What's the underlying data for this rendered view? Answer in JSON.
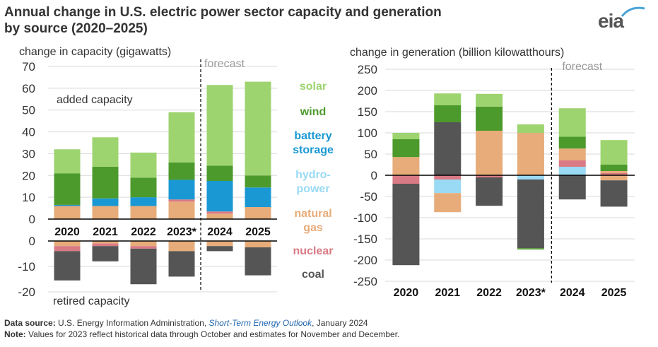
{
  "title": {
    "line1": "Annual change in U.S. electric power sector capacity and generation",
    "line2": "by source (2020–2025)"
  },
  "logo": {
    "text": "eia",
    "icon": "eia-logo-icon"
  },
  "colors": {
    "solar": "#9dd46f",
    "wind": "#4d9a2c",
    "battery storage": "#1a98d4",
    "hydropower": "#9adaf5",
    "natural gas": "#e7ac7a",
    "nuclear": "#d97a85",
    "coal": "#555555"
  },
  "legend": [
    {
      "label": "solar",
      "key": "solar"
    },
    {
      "label": "wind",
      "key": "wind"
    },
    {
      "label": "battery\nstorage",
      "key": "battery storage"
    },
    {
      "label": "hydro-\npower",
      "key": "hydropower"
    },
    {
      "label": "natural\ngas",
      "key": "natural gas"
    },
    {
      "label": "nuclear",
      "key": "nuclear"
    },
    {
      "label": "coal",
      "key": "coal"
    }
  ],
  "footer": {
    "source_label": "Data source:",
    "source_text_pre": " U.S. Energy Information Administration, ",
    "source_link": "Short-Term Energy Outlook",
    "source_text_post": ", January 2024",
    "note_label": "Note:",
    "note_text": " Values for 2023 reflect historical data through October and estimates for November and December."
  },
  "chart_data": [
    {
      "type": "bar",
      "stacked": true,
      "title": "change in capacity (gigawatts)",
      "categories": [
        "2020",
        "2021",
        "2022",
        "2023*",
        "2024",
        "2025"
      ],
      "forecast_label": "forecast",
      "forecast_start_index": 4,
      "added_label": "added capacity",
      "retired_label": "retired capacity",
      "added": {
        "ylim": [
          0,
          70
        ],
        "ticks": [
          0,
          10,
          20,
          30,
          40,
          50,
          60,
          70
        ],
        "series": [
          {
            "name": "natural gas",
            "values": [
              6,
              6,
              6,
              8,
              2.5,
              5.5
            ]
          },
          {
            "name": "battery storage",
            "values": [
              0.5,
              3.5,
              4,
              9,
              14,
              9
            ]
          },
          {
            "name": "wind",
            "values": [
              14.5,
              14.5,
              9,
              8,
              7,
              5.5
            ]
          },
          {
            "name": "solar",
            "values": [
              11,
              13.5,
              11.5,
              23,
              37,
              43
            ]
          },
          {
            "name": "nuclear",
            "values": [
              0,
              0,
              0,
              1,
              1,
              0
            ]
          }
        ],
        "series_order": [
          "natural gas",
          "nuclear",
          "battery storage",
          "wind",
          "solar"
        ]
      },
      "retired": {
        "ylim": [
          -20,
          0
        ],
        "ticks": [
          0,
          -10,
          -20
        ],
        "series": [
          {
            "name": "natural gas",
            "values": [
              -2,
              -1,
              -2,
              -4,
              -2,
              -2.5
            ]
          },
          {
            "name": "nuclear",
            "values": [
              -2,
              -1,
              -1,
              0,
              0,
              0
            ]
          },
          {
            "name": "coal",
            "values": [
              -11.5,
              -6,
              -14,
              -10,
              -2,
              -11
            ]
          }
        ],
        "series_order": [
          "natural gas",
          "nuclear",
          "coal"
        ]
      }
    },
    {
      "type": "bar",
      "stacked": true,
      "title": "change in generation (billion kilowatthours)",
      "categories": [
        "2020",
        "2021",
        "2022",
        "2023*",
        "2024",
        "2025"
      ],
      "forecast_label": "forecast",
      "forecast_start_index": 4,
      "ylim": [
        -250,
        250
      ],
      "ticks": [
        250,
        200,
        150,
        100,
        50,
        0,
        -50,
        -100,
        -150,
        -200,
        -250
      ],
      "positive_series": [
        {
          "name": "hydropower",
          "values": [
            0,
            0,
            0,
            0,
            20,
            0
          ]
        },
        {
          "name": "nuclear",
          "values": [
            0,
            0,
            0,
            0,
            15,
            5
          ]
        },
        {
          "name": "natural gas",
          "values": [
            43,
            0,
            105,
            100,
            28,
            5
          ]
        },
        {
          "name": "wind",
          "values": [
            42,
            40,
            57,
            0,
            28,
            15
          ]
        },
        {
          "name": "solar",
          "values": [
            15,
            28,
            30,
            20,
            67,
            58
          ]
        },
        {
          "name": "coal",
          "values": [
            0,
            125,
            0,
            0,
            0,
            0
          ]
        }
      ],
      "positive_order": [
        "coal",
        "hydropower",
        "nuclear",
        "natural gas",
        "wind",
        "solar"
      ],
      "negative_series": [
        {
          "name": "nuclear",
          "values": [
            -20,
            -10,
            -5,
            0,
            0,
            0
          ]
        },
        {
          "name": "hydropower",
          "values": [
            0,
            -32,
            0,
            -10,
            0,
            0
          ]
        },
        {
          "name": "natural gas",
          "values": [
            0,
            -45,
            0,
            0,
            0,
            -12
          ]
        },
        {
          "name": "coal",
          "values": [
            -192,
            0,
            -67,
            -162,
            -57,
            -62
          ]
        },
        {
          "name": "wind",
          "values": [
            0,
            0,
            0,
            -3,
            0,
            0
          ]
        }
      ],
      "negative_order": [
        "nuclear",
        "hydropower",
        "natural gas",
        "coal",
        "wind"
      ]
    }
  ]
}
